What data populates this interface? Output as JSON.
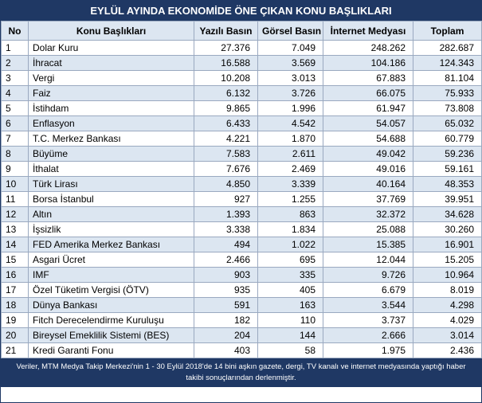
{
  "header": {
    "title": "EYLÜL AYINDA EKONOMİDE ÖNE ÇIKAN KONU BAŞLIKLARI"
  },
  "table": {
    "columns": [
      "No",
      "Konu Başlıkları",
      "Yazılı Basın",
      "Görsel Basın",
      "İnternet Medyası",
      "Toplam"
    ],
    "rows": [
      [
        "1",
        "Dolar Kuru",
        "27.376",
        "7.049",
        "248.262",
        "282.687"
      ],
      [
        "2",
        "İhracat",
        "16.588",
        "3.569",
        "104.186",
        "124.343"
      ],
      [
        "3",
        "Vergi",
        "10.208",
        "3.013",
        "67.883",
        "81.104"
      ],
      [
        "4",
        "Faiz",
        "6.132",
        "3.726",
        "66.075",
        "75.933"
      ],
      [
        "5",
        "İstihdam",
        "9.865",
        "1.996",
        "61.947",
        "73.808"
      ],
      [
        "6",
        "Enflasyon",
        "6.433",
        "4.542",
        "54.057",
        "65.032"
      ],
      [
        "7",
        "T.C. Merkez Bankası",
        "4.221",
        "1.870",
        "54.688",
        "60.779"
      ],
      [
        "8",
        "Büyüme",
        "7.583",
        "2.611",
        "49.042",
        "59.236"
      ],
      [
        "9",
        "İthalat",
        "7.676",
        "2.469",
        "49.016",
        "59.161"
      ],
      [
        "10",
        "Türk Lirası",
        "4.850",
        "3.339",
        "40.164",
        "48.353"
      ],
      [
        "11",
        "Borsa İstanbul",
        "927",
        "1.255",
        "37.769",
        "39.951"
      ],
      [
        "12",
        "Altın",
        "1.393",
        "863",
        "32.372",
        "34.628"
      ],
      [
        "13",
        "İşsizlik",
        "3.338",
        "1.834",
        "25.088",
        "30.260"
      ],
      [
        "14",
        "FED Amerika Merkez Bankası",
        "494",
        "1.022",
        "15.385",
        "16.901"
      ],
      [
        "15",
        "Asgari Ücret",
        "2.466",
        "695",
        "12.044",
        "15.205"
      ],
      [
        "16",
        "IMF",
        "903",
        "335",
        "9.726",
        "10.964"
      ],
      [
        "17",
        "Özel Tüketim Vergisi (ÖTV)",
        "935",
        "405",
        "6.679",
        "8.019"
      ],
      [
        "18",
        "Dünya Bankası",
        "591",
        "163",
        "3.544",
        "4.298"
      ],
      [
        "19",
        "Fitch Derecelendirme Kuruluşu",
        "182",
        "110",
        "3.737",
        "4.029"
      ],
      [
        "20",
        "Bireysel Emeklilik Sistemi (BES)",
        "204",
        "144",
        "2.666",
        "3.014"
      ],
      [
        "21",
        "Kredi Garanti Fonu",
        "403",
        "58",
        "1.975",
        "2.436"
      ]
    ]
  },
  "footer": {
    "note": "Veriler, MTM Medya Takip Merkezi'nin 1 - 30 Eylül 2018'de 14 bini aşkın gazete, dergi, TV kanalı ve internet medyasında yaptığı haber takibi sonuçlarından derlenmiştir."
  }
}
